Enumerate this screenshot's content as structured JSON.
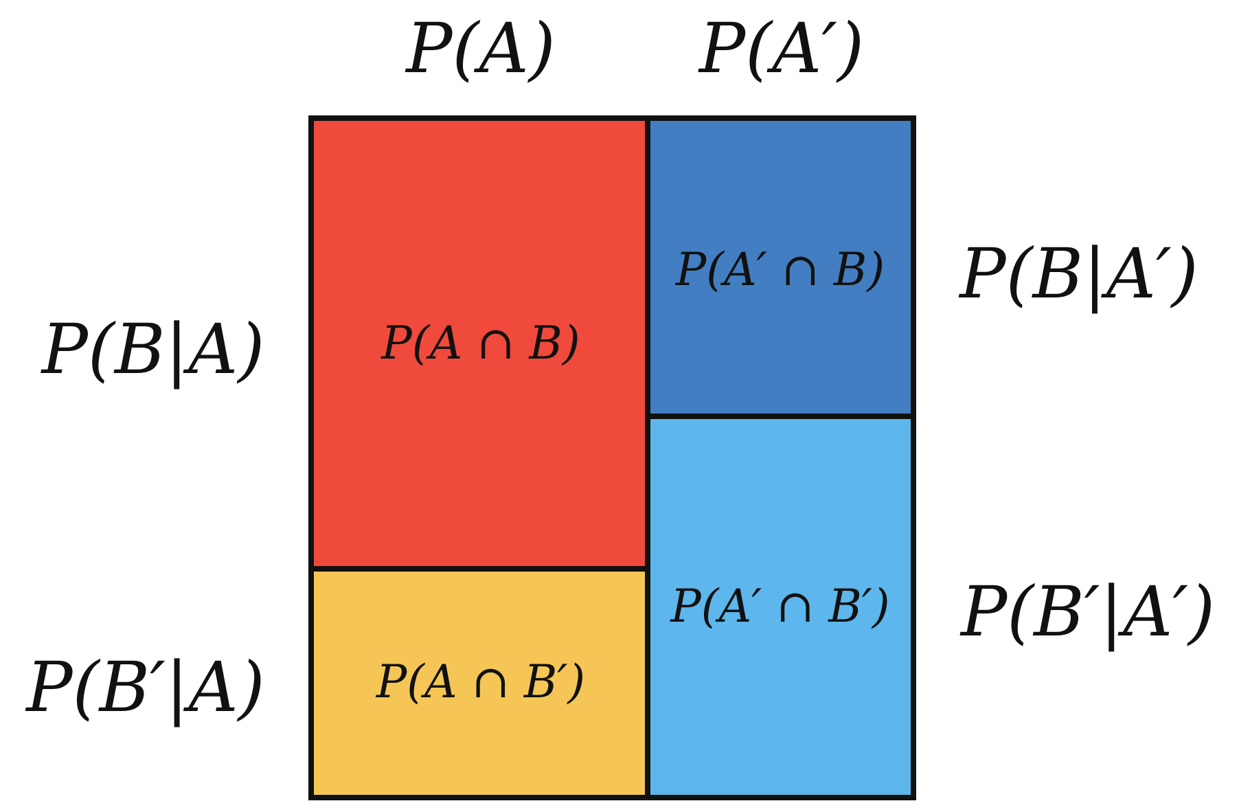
{
  "diagram": {
    "top_labels": {
      "col_a": "P(A)",
      "col_not_a": "P(A′)"
    },
    "left_labels": {
      "b_given_a": "P(B|A)",
      "not_b_given_a": "P(B′|A)"
    },
    "right_labels": {
      "b_given_not_a": "P(B|A′)",
      "not_b_given_not_a": "P(B′|A′)"
    },
    "cells": {
      "a_and_b": {
        "label": "P(A ∩ B)",
        "color": "#EF4A3B"
      },
      "a_and_not_b": {
        "label": "P(A ∩ B′)",
        "color": "#F5C655"
      },
      "not_a_and_b": {
        "label": "P(A′ ∩ B)",
        "color": "#427EC1"
      },
      "not_a_and_not_b": {
        "label": "P(A′ ∩ B′)",
        "color": "#5DB6EC"
      }
    },
    "border_color": "#111111"
  }
}
